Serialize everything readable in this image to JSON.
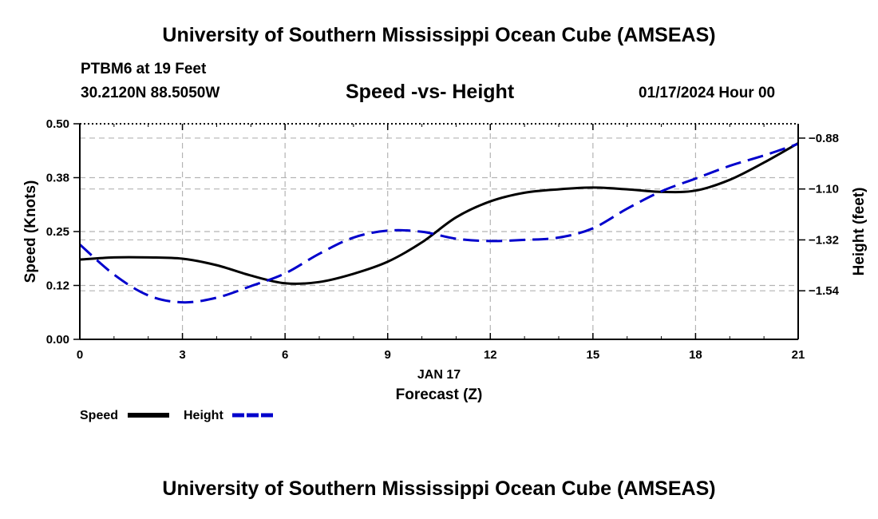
{
  "header": {
    "title": "University of Southern Mississippi Ocean Cube (AMSEAS)",
    "station": "PTBM6 at 19 Feet",
    "coords": "30.2120N  88.5050W",
    "subtitle": "Speed -vs- Height",
    "datetime": "01/17/2024 Hour 00"
  },
  "footer": {
    "title": "University of Southern Mississippi Ocean Cube (AMSEAS)"
  },
  "chart_data": {
    "type": "line",
    "title": "Speed -vs- Height",
    "xlabel": "Forecast (Z)",
    "xlabel_date": "JAN 17",
    "ylabel": "Speed (Knots)",
    "y2label": "Height (feet)",
    "xlim": [
      0,
      21
    ],
    "ylim": [
      0,
      0.5
    ],
    "y2lim": [
      -1.75,
      -0.818
    ],
    "xticks": [
      0,
      3,
      6,
      9,
      12,
      15,
      18,
      21
    ],
    "xtick_labels": [
      "0",
      "3",
      "6",
      "9",
      "12",
      "15",
      "18",
      "21"
    ],
    "yticks": [
      0,
      0.125,
      0.25,
      0.375,
      0.5
    ],
    "ytick_labels": [
      "0.00",
      "0.12",
      "0.25",
      "0.38",
      "0.50"
    ],
    "y2ticks": [
      -1.54,
      -1.32,
      -1.1,
      -0.88
    ],
    "y2tick_labels": [
      "−1.54",
      "−1.32",
      "−1.10",
      "−0.88"
    ],
    "grid": true,
    "series": [
      {
        "name": "Speed",
        "axis": "left",
        "color": "#000000",
        "dash": "solid",
        "x": [
          0,
          1,
          2,
          3,
          4,
          5,
          6,
          7,
          8,
          9,
          10,
          11,
          12,
          13,
          14,
          15,
          16,
          17,
          18,
          19,
          20,
          21
        ],
        "values": [
          0.185,
          0.19,
          0.19,
          0.187,
          0.172,
          0.148,
          0.13,
          0.133,
          0.152,
          0.18,
          0.225,
          0.283,
          0.32,
          0.34,
          0.348,
          0.352,
          0.348,
          0.342,
          0.345,
          0.37,
          0.41,
          0.455
        ]
      },
      {
        "name": "Height",
        "axis": "right",
        "color": "#0000cc",
        "dash": "dashed",
        "x": [
          0,
          1,
          2,
          3,
          4,
          5,
          6,
          7,
          8,
          9,
          10,
          11,
          12,
          13,
          14,
          15,
          16,
          17,
          18,
          19,
          20,
          21
        ],
        "values": [
          -1.34,
          -1.47,
          -1.56,
          -1.59,
          -1.57,
          -1.52,
          -1.465,
          -1.38,
          -1.31,
          -1.28,
          -1.285,
          -1.315,
          -1.325,
          -1.32,
          -1.31,
          -1.27,
          -1.185,
          -1.11,
          -1.055,
          -1.0,
          -0.955,
          -0.905
        ]
      }
    ],
    "legend": [
      {
        "label": "Speed",
        "color": "#000000",
        "dash": "solid"
      },
      {
        "label": "Height",
        "color": "#0000cc",
        "dash": "dashed"
      }
    ],
    "legend_position": "bottom-left"
  }
}
